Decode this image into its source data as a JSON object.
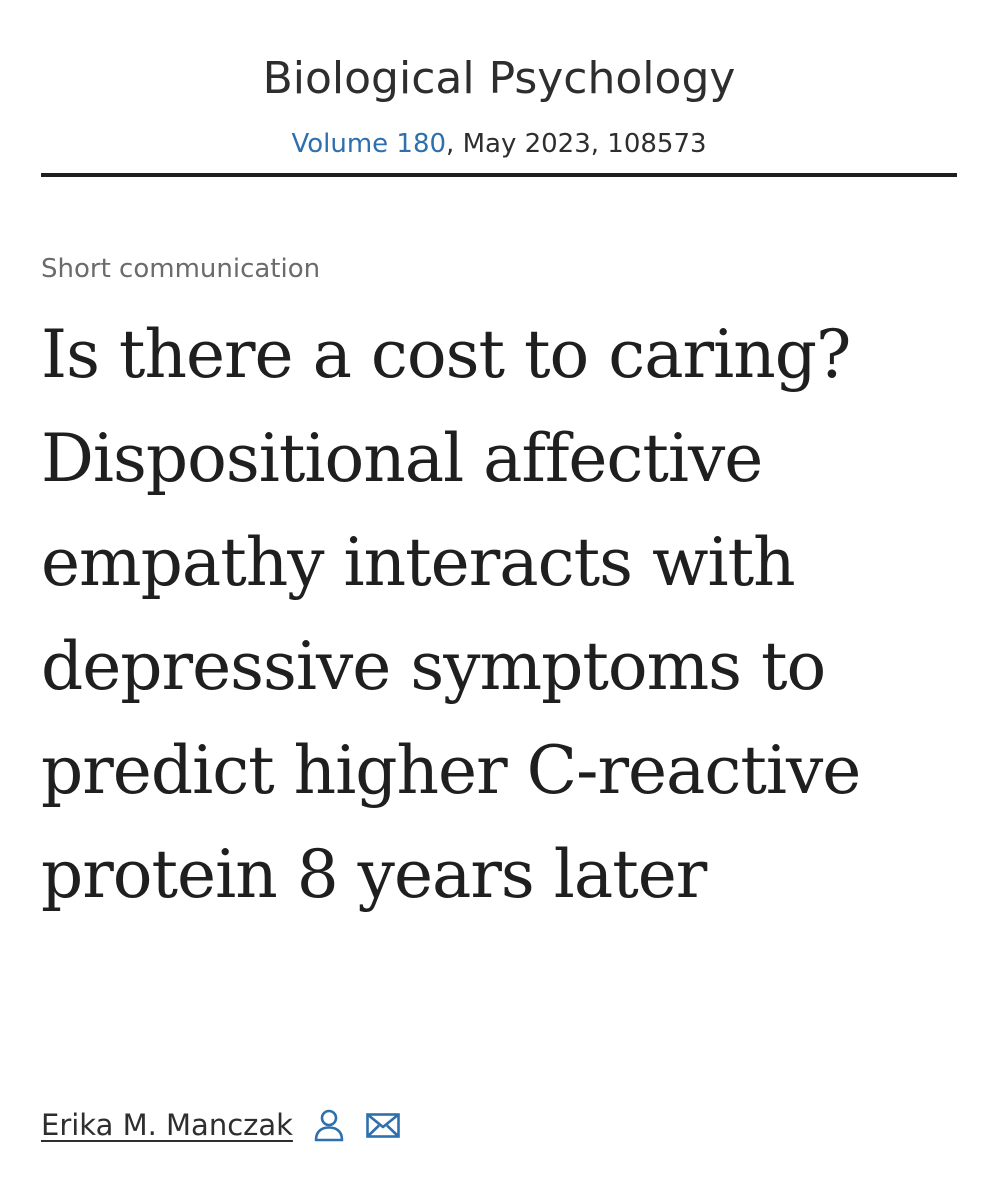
{
  "journal": {
    "title": "Biological Psychology",
    "volume_label": "Volume 180",
    "issue_rest": ", May 2023, 108573"
  },
  "article": {
    "type": "Short communication",
    "title": "Is there a cost to caring? Dispositional affective empathy interacts with depressive symptoms to predict higher C-reactive protein 8 years later"
  },
  "authors": [
    {
      "name": "Erika M. Manczak",
      "icons": [
        "person-icon",
        "email-icon"
      ]
    }
  ],
  "colors": {
    "link_blue": "#2e6fae",
    "text": "#1f1f1f",
    "muted": "#6b6b6b"
  }
}
